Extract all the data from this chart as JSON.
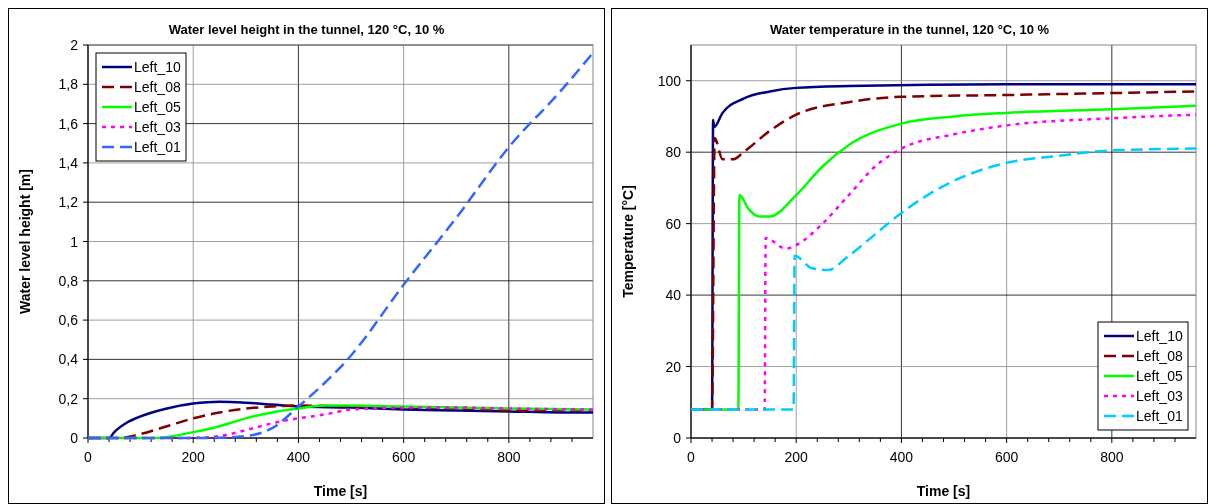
{
  "chart_data": [
    {
      "type": "line",
      "title": "Water level height in the tunnel, 120 °C, 10 %",
      "xlabel": "Time [s]",
      "ylabel": "Water level height [m]",
      "xlim": [
        0,
        960
      ],
      "xticks": [
        0,
        200,
        400,
        600,
        800
      ],
      "ylim": [
        0,
        2
      ],
      "yticks": [
        0,
        {
          "value": 0.2,
          "label": "0,2"
        },
        {
          "value": 0.4,
          "label": "0,4"
        },
        {
          "value": 0.6,
          "label": "0,6"
        },
        {
          "value": 0.8,
          "label": "0,8"
        },
        1,
        {
          "value": 1.2,
          "label": "1,2"
        },
        {
          "value": 1.4,
          "label": "1,4"
        },
        {
          "value": 1.6,
          "label": "1,6"
        },
        {
          "value": 1.8,
          "label": "1,8"
        },
        2
      ],
      "grid": true,
      "legend": "top left",
      "series": [
        {
          "name": "Left_10",
          "color": "#000080",
          "line_style": "solid",
          "x": [
            0,
            40,
            50,
            75,
            100,
            150,
            200,
            250,
            300,
            350,
            400,
            500,
            600,
            700,
            800,
            900,
            960
          ],
          "values": [
            0,
            0,
            0.03,
            0.08,
            0.11,
            0.15,
            0.175,
            0.185,
            0.18,
            0.17,
            0.16,
            0.155,
            0.145,
            0.14,
            0.135,
            0.13,
            0.13
          ]
        },
        {
          "name": "Left_08",
          "color": "#800000",
          "line_style": "dashed",
          "x": [
            0,
            60,
            100,
            150,
            200,
            250,
            300,
            350,
            400,
            500,
            600,
            700,
            800,
            960
          ],
          "values": [
            0,
            0,
            0.02,
            0.06,
            0.1,
            0.13,
            0.15,
            0.16,
            0.165,
            0.16,
            0.155,
            0.15,
            0.14,
            0.14
          ]
        },
        {
          "name": "Left_05",
          "color": "#00ff00",
          "line_style": "solid",
          "x": [
            0,
            130,
            200,
            250,
            300,
            350,
            400,
            450,
            500,
            600,
            700,
            800,
            960
          ],
          "values": [
            0,
            0,
            0.03,
            0.06,
            0.1,
            0.13,
            0.15,
            0.165,
            0.165,
            0.16,
            0.155,
            0.15,
            0.145
          ]
        },
        {
          "name": "Left_03",
          "color": "#ff00ff",
          "line_style": "dotted",
          "x": [
            0,
            190,
            250,
            300,
            350,
            400,
            450,
            500,
            600,
            700,
            800,
            960
          ],
          "values": [
            0,
            0,
            0.01,
            0.04,
            0.075,
            0.1,
            0.12,
            0.145,
            0.155,
            0.155,
            0.15,
            0.145
          ]
        },
        {
          "name": "Left_01",
          "color": "#3366ff",
          "line_style": "dashed",
          "x": [
            0,
            230,
            300,
            350,
            400,
            500,
            600,
            700,
            800,
            900,
            960
          ],
          "values": [
            0,
            0,
            0.01,
            0.05,
            0.16,
            0.42,
            0.78,
            1.12,
            1.48,
            1.77,
            1.96
          ]
        }
      ]
    },
    {
      "type": "line",
      "title": "Water temperature in the tunnel, 120 °C, 10 %",
      "xlabel": "Time [s]",
      "ylabel": "Temperature [°C]",
      "xlim": [
        0,
        960
      ],
      "xticks": [
        0,
        200,
        400,
        600,
        800
      ],
      "ylim": [
        0,
        110
      ],
      "yticks": [
        0,
        20,
        40,
        60,
        80,
        100
      ],
      "grid": true,
      "legend": "bottom right",
      "series": [
        {
          "name": "Left_10",
          "color": "#000080",
          "line_style": "solid",
          "x": [
            0,
            40,
            42,
            44,
            60,
            100,
            150,
            200,
            300,
            600,
            960
          ],
          "values": [
            8,
            8,
            89,
            87,
            91,
            95,
            97,
            98,
            98.5,
            99,
            99
          ]
        },
        {
          "name": "Left_08",
          "color": "#800000",
          "line_style": "dashed",
          "x": [
            0,
            40,
            45,
            60,
            80,
            100,
            150,
            200,
            300,
            400,
            600,
            960
          ],
          "values": [
            8,
            8,
            84,
            78,
            78,
            80,
            86,
            90.5,
            94,
            95.5,
            96,
            97
          ]
        },
        {
          "name": "Left_05",
          "color": "#00ff00",
          "line_style": "solid",
          "x": [
            0,
            90,
            92,
            110,
            130,
            150,
            200,
            250,
            300,
            400,
            500,
            600,
            800,
            960
          ],
          "values": [
            8,
            8,
            68,
            64,
            62,
            62,
            68,
            76,
            82,
            88,
            90,
            91,
            92,
            93
          ]
        },
        {
          "name": "Left_03",
          "color": "#ff00ff",
          "line_style": "dotted",
          "x": [
            0,
            140,
            142,
            180,
            200,
            250,
            300,
            350,
            400,
            500,
            600,
            800,
            960
          ],
          "values": [
            8,
            8,
            56,
            53,
            54,
            60,
            68,
            76,
            81,
            85,
            87.5,
            89.5,
            90.5
          ]
        },
        {
          "name": "Left_01",
          "color": "#00ccff",
          "line_style": "dashed",
          "x": [
            0,
            195,
            197,
            230,
            260,
            300,
            350,
            400,
            500,
            600,
            700,
            800,
            960
          ],
          "values": [
            8,
            8,
            51,
            47.5,
            47,
            51,
            57,
            63,
            72,
            77,
            79,
            80.5,
            81
          ]
        }
      ]
    }
  ]
}
